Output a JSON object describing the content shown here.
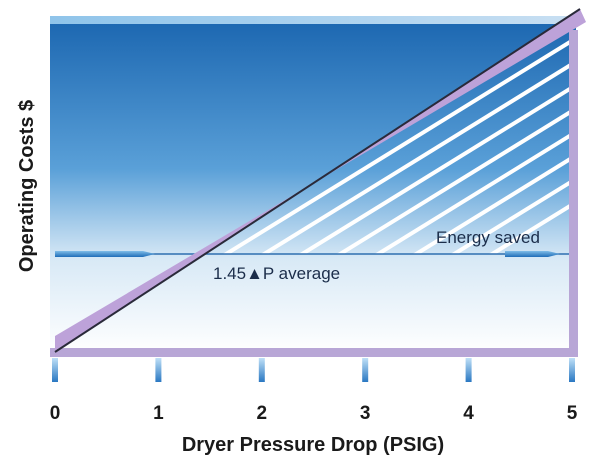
{
  "chart_data": {
    "type": "line",
    "title": "",
    "xlabel": "Dryer Pressure Drop (PSIG)",
    "ylabel": "Operating Costs $",
    "x_ticks": [
      "0",
      "1",
      "2",
      "3",
      "4",
      "5"
    ],
    "xlim": [
      0,
      5
    ],
    "series": [
      {
        "x": [
          0,
          5
        ],
        "values": [
          0.0,
          1.0
        ]
      }
    ],
    "reference_line": {
      "y": 0.29
    },
    "annotations": {
      "average": "1.45▲P average",
      "saved": "Energy saved"
    },
    "colors": {
      "panel_top": "#1f6fb8",
      "panel_bottom": "#ffffff",
      "frame": "#b7a3d3",
      "cost_line": "#b89ad6",
      "hatch": "#ffffff",
      "arrow": "#2b7bc4"
    }
  }
}
